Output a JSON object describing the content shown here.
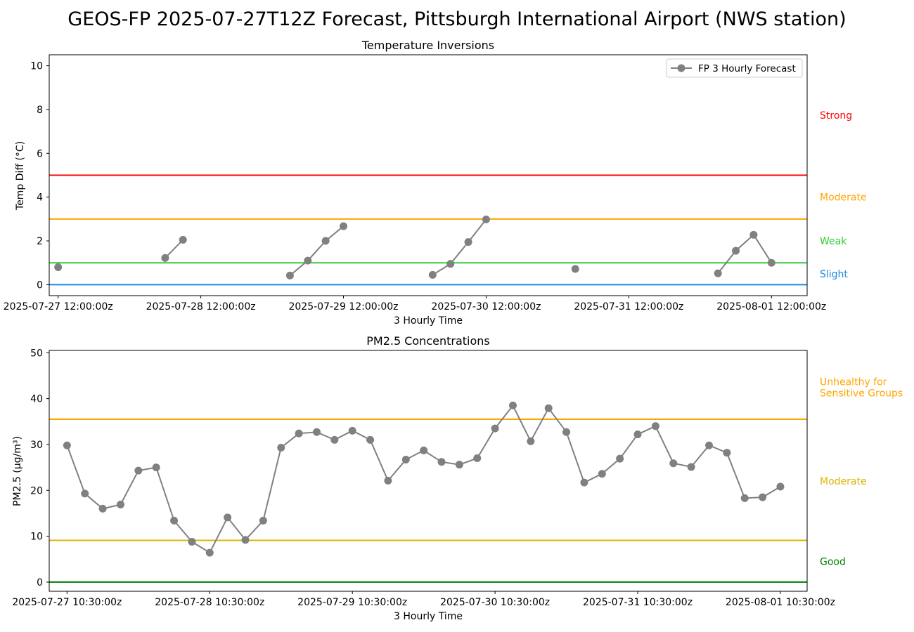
{
  "figure": {
    "suptitle": "GEOS-FP 2025-07-27T12Z Forecast, Pittsburgh International Airport (NWS station)"
  },
  "chart_data": [
    {
      "type": "line",
      "title": "Temperature Inversions",
      "xlabel": "3 Hourly Time",
      "ylabel": "Temp Diff (°C)",
      "ylim": [
        -0.5,
        10.5
      ],
      "yticks": [
        0,
        2,
        4,
        6,
        8,
        10
      ],
      "x_range_hours": [
        -1.5,
        126
      ],
      "xticks": [
        {
          "hour": 0,
          "label": "2025-07-27 12:00:00z"
        },
        {
          "hour": 24,
          "label": "2025-07-28 12:00:00z"
        },
        {
          "hour": 48,
          "label": "2025-07-29 12:00:00z"
        },
        {
          "hour": 72,
          "label": "2025-07-30 12:00:00z"
        },
        {
          "hour": 96,
          "label": "2025-07-31 12:00:00z"
        },
        {
          "hour": 120,
          "label": "2025-08-01 12:00:00z"
        }
      ],
      "legend_position": "upper-right",
      "series": [
        {
          "name": "FP 3 Hourly Forecast",
          "color": "#808080",
          "segments": [
            [
              [
                0,
                0.8
              ]
            ],
            [
              [
                18,
                1.22
              ],
              [
                21,
                2.05
              ]
            ],
            [
              [
                39,
                0.42
              ],
              [
                42,
                1.1
              ],
              [
                45,
                2.0
              ],
              [
                48,
                2.67
              ]
            ],
            [
              [
                63,
                0.45
              ],
              [
                66,
                0.95
              ],
              [
                69,
                1.95
              ],
              [
                72,
                2.98
              ]
            ],
            [
              [
                87,
                0.72
              ]
            ],
            [
              [
                111,
                0.52
              ],
              [
                114,
                1.55
              ],
              [
                117,
                2.28
              ],
              [
                120,
                1.0
              ]
            ]
          ]
        }
      ],
      "thresholds": [
        {
          "value": 0,
          "color": "#1e88e5",
          "label": "Slight",
          "label_y": 0.5
        },
        {
          "value": 1,
          "color": "#32cd32",
          "label": "Weak",
          "label_y": 2.0
        },
        {
          "value": 3,
          "color": "#ffa500",
          "label": "Moderate",
          "label_y": 4.0
        },
        {
          "value": 5,
          "color": "#ff0000",
          "label": "Strong",
          "label_y": 7.75
        }
      ]
    },
    {
      "type": "line",
      "title": "PM2.5 Concentrations",
      "xlabel": "3 Hourly Time",
      "ylabel": "PM2.5 (µg/m³)",
      "ylim": [
        -2,
        50.5
      ],
      "yticks": [
        0,
        10,
        20,
        30,
        40,
        50
      ],
      "x_range_hours": [
        -3,
        124.5
      ],
      "xticks": [
        {
          "hour": 0,
          "label": "2025-07-27 10:30:00z"
        },
        {
          "hour": 24,
          "label": "2025-07-28 10:30:00z"
        },
        {
          "hour": 48,
          "label": "2025-07-29 10:30:00z"
        },
        {
          "hour": 72,
          "label": "2025-07-30 10:30:00z"
        },
        {
          "hour": 96,
          "label": "2025-07-31 10:30:00z"
        },
        {
          "hour": 120,
          "label": "2025-08-01 10:30:00z"
        }
      ],
      "series": [
        {
          "name": "FP 3 Hourly Forecast",
          "color": "#808080",
          "x_step_hours": 3,
          "values": [
            29.8,
            19.3,
            16.0,
            16.9,
            24.3,
            25.0,
            13.4,
            8.8,
            6.4,
            14.1,
            9.2,
            13.4,
            29.3,
            32.4,
            32.7,
            31.0,
            33.0,
            31.0,
            22.1,
            26.7,
            28.7,
            26.2,
            25.6,
            27.0,
            33.5,
            38.5,
            30.7,
            37.9,
            32.7,
            21.7,
            23.6,
            26.9,
            32.2,
            34.0,
            25.9,
            25.1,
            29.8,
            28.2,
            18.3,
            18.5,
            20.8
          ]
        }
      ],
      "thresholds": [
        {
          "value": 0,
          "color": "#008000",
          "label": "Good",
          "label_y": 4.5
        },
        {
          "value": 9.1,
          "color": "#dcb400",
          "label": "Moderate",
          "label_y": 22.0
        },
        {
          "value": 35.5,
          "color": "#ffa500",
          "label": "Unhealthy for\nSensitive Groups",
          "label_y": 42.5
        }
      ]
    }
  ]
}
